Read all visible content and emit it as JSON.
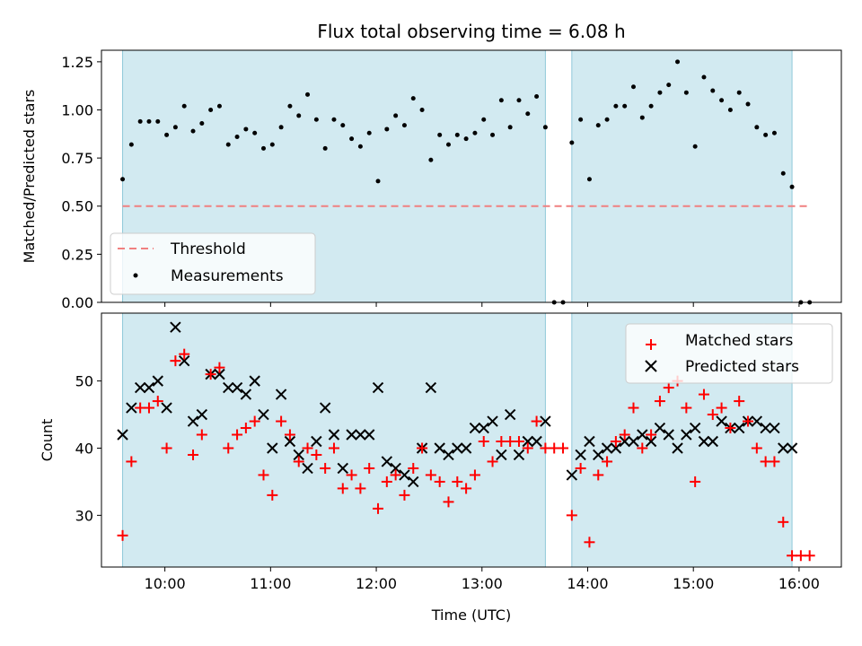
{
  "chart_data": [
    {
      "type": "scatter",
      "title": "Flux total observing time = 6.08 h",
      "ylabel": "Matched/Predicted stars",
      "xlabel": "",
      "ylim": [
        0,
        1.31
      ],
      "yticks": [
        0.0,
        0.25,
        0.5,
        0.75,
        1.0,
        1.25
      ],
      "ytick_labels": [
        "0.00",
        "0.25",
        "0.50",
        "0.75",
        "1.00",
        "1.25"
      ],
      "legend": {
        "placement": "lower-left",
        "entries": [
          "Threshold",
          "Measurements"
        ]
      },
      "threshold": {
        "name": "Threshold",
        "value": 0.5,
        "x_start": "09:36",
        "x_end": "16:06",
        "color": "#f08080"
      },
      "series": [
        {
          "name": "Measurements",
          "color": "#000000",
          "x": [
            "09:36",
            "09:41",
            "09:46",
            "09:51",
            "09:56",
            "10:01",
            "10:06",
            "10:11",
            "10:16",
            "10:21",
            "10:26",
            "10:31",
            "10:36",
            "10:41",
            "10:46",
            "10:51",
            "10:56",
            "11:01",
            "11:06",
            "11:11",
            "11:16",
            "11:21",
            "11:26",
            "11:31",
            "11:36",
            "11:41",
            "11:46",
            "11:51",
            "11:56",
            "12:01",
            "12:06",
            "12:11",
            "12:16",
            "12:21",
            "12:26",
            "12:31",
            "12:36",
            "12:41",
            "12:46",
            "12:51",
            "12:56",
            "13:01",
            "13:06",
            "13:11",
            "13:16",
            "13:21",
            "13:26",
            "13:31",
            "13:36",
            "13:41",
            "13:46",
            "13:51",
            "13:56",
            "14:01",
            "14:06",
            "14:11",
            "14:16",
            "14:21",
            "14:26",
            "14:31",
            "14:36",
            "14:41",
            "14:46",
            "14:51",
            "14:56",
            "15:01",
            "15:06",
            "15:11",
            "15:16",
            "15:21",
            "15:26",
            "15:31",
            "15:36",
            "15:41",
            "15:46",
            "15:51",
            "15:56",
            "16:01",
            "16:06"
          ],
          "y": [
            0.64,
            0.82,
            0.94,
            0.94,
            0.94,
            0.87,
            0.91,
            1.02,
            0.89,
            0.93,
            1.0,
            1.02,
            0.82,
            0.86,
            0.9,
            0.88,
            0.8,
            0.82,
            0.91,
            1.02,
            0.97,
            1.08,
            0.95,
            0.8,
            0.95,
            0.92,
            0.85,
            0.81,
            0.88,
            0.63,
            0.9,
            0.97,
            0.92,
            1.06,
            1.0,
            0.74,
            0.87,
            0.82,
            0.87,
            0.85,
            0.88,
            0.95,
            0.87,
            1.05,
            0.91,
            1.05,
            0.98,
            1.07,
            0.91,
            0.0,
            0.0,
            0.83,
            0.95,
            0.64,
            0.92,
            0.95,
            1.02,
            1.02,
            1.12,
            0.96,
            1.02,
            1.09,
            1.13,
            1.25,
            1.09,
            0.81,
            1.17,
            1.1,
            1.05,
            1.0,
            1.09,
            1.03,
            0.91,
            0.87,
            0.88,
            0.67,
            0.6,
            0.0,
            0.0
          ]
        }
      ],
      "shaded_intervals": [
        [
          "09:36",
          "13:36"
        ],
        [
          "13:51",
          "15:56"
        ]
      ],
      "shade_color": "#add8e6"
    },
    {
      "type": "scatter",
      "title": "",
      "ylabel": "Count",
      "xlabel": "Time (UTC)",
      "xlim": [
        "09:24",
        "16:24"
      ],
      "ylim": [
        22.3,
        60.1
      ],
      "yticks": [
        30,
        40,
        50
      ],
      "ytick_labels": [
        "30",
        "40",
        "50"
      ],
      "xticks": [
        "10:00",
        "11:00",
        "12:00",
        "13:00",
        "14:00",
        "15:00",
        "16:00"
      ],
      "xtick_labels": [
        "10:00",
        "11:00",
        "12:00",
        "13:00",
        "14:00",
        "15:00",
        "16:00"
      ],
      "legend": {
        "placement": "upper-right",
        "entries": [
          "Matched stars",
          "Predicted stars"
        ]
      },
      "series": [
        {
          "name": "Matched stars",
          "marker": "plus",
          "color": "#ff0000",
          "x": [
            "09:36",
            "09:41",
            "09:46",
            "09:51",
            "09:56",
            "10:01",
            "10:06",
            "10:11",
            "10:16",
            "10:21",
            "10:26",
            "10:31",
            "10:36",
            "10:41",
            "10:46",
            "10:51",
            "10:56",
            "11:01",
            "11:06",
            "11:11",
            "11:16",
            "11:21",
            "11:26",
            "11:31",
            "11:36",
            "11:41",
            "11:46",
            "11:51",
            "11:56",
            "12:01",
            "12:06",
            "12:11",
            "12:16",
            "12:21",
            "12:26",
            "12:31",
            "12:36",
            "12:41",
            "12:46",
            "12:51",
            "12:56",
            "13:01",
            "13:06",
            "13:11",
            "13:16",
            "13:21",
            "13:26",
            "13:31",
            "13:36",
            "13:41",
            "13:46",
            "13:51",
            "13:56",
            "14:01",
            "14:06",
            "14:11",
            "14:16",
            "14:21",
            "14:26",
            "14:31",
            "14:36",
            "14:41",
            "14:46",
            "14:51",
            "14:56",
            "15:01",
            "15:06",
            "15:11",
            "15:16",
            "15:21",
            "15:26",
            "15:31",
            "15:36",
            "15:41",
            "15:46",
            "15:51",
            "15:56",
            "16:01",
            "16:06"
          ],
          "y": [
            27,
            38,
            46,
            46,
            47,
            40,
            53,
            54,
            39,
            42,
            51,
            52,
            40,
            42,
            43,
            44,
            36,
            33,
            44,
            42,
            38,
            40,
            39,
            37,
            40,
            34,
            36,
            34,
            37,
            31,
            35,
            36,
            33,
            37,
            40,
            36,
            35,
            32,
            35,
            34,
            36,
            41,
            38,
            41,
            41,
            41,
            40,
            44,
            40,
            40,
            40,
            30,
            37,
            26,
            36,
            38,
            41,
            42,
            46,
            40,
            42,
            47,
            49,
            50,
            46,
            35,
            48,
            45,
            46,
            43,
            47,
            44,
            40,
            38,
            38,
            29,
            24,
            24,
            24
          ]
        },
        {
          "name": "Predicted stars",
          "marker": "x",
          "color": "#000000",
          "x": [
            "09:36",
            "09:41",
            "09:46",
            "09:51",
            "09:56",
            "10:01",
            "10:06",
            "10:11",
            "10:16",
            "10:21",
            "10:26",
            "10:31",
            "10:36",
            "10:41",
            "10:46",
            "10:51",
            "10:56",
            "11:01",
            "11:06",
            "11:11",
            "11:16",
            "11:21",
            "11:26",
            "11:31",
            "11:36",
            "11:41",
            "11:46",
            "11:51",
            "11:56",
            "12:01",
            "12:06",
            "12:11",
            "12:16",
            "12:21",
            "12:26",
            "12:31",
            "12:36",
            "12:41",
            "12:46",
            "12:51",
            "12:56",
            "13:01",
            "13:06",
            "13:11",
            "13:16",
            "13:21",
            "13:26",
            "13:31",
            "13:36",
            "13:51",
            "13:56",
            "14:01",
            "14:06",
            "14:11",
            "14:16",
            "14:21",
            "14:26",
            "14:31",
            "14:36",
            "14:41",
            "14:46",
            "14:51",
            "14:56",
            "15:01",
            "15:06",
            "15:11",
            "15:16",
            "15:21",
            "15:26",
            "15:31",
            "15:36",
            "15:41",
            "15:46",
            "15:51",
            "15:56"
          ],
          "y": [
            42,
            46,
            49,
            49,
            50,
            46,
            58,
            53,
            44,
            45,
            51,
            51,
            49,
            49,
            48,
            50,
            45,
            40,
            48,
            41,
            39,
            37,
            41,
            46,
            42,
            37,
            42,
            42,
            42,
            49,
            38,
            37,
            36,
            35,
            40,
            49,
            40,
            39,
            40,
            40,
            43,
            43,
            44,
            39,
            45,
            39,
            41,
            41,
            44,
            36,
            39,
            41,
            39,
            40,
            40,
            41,
            41,
            42,
            41,
            43,
            42,
            40,
            42,
            43,
            41,
            41,
            44,
            43,
            43,
            44,
            44,
            43,
            43,
            40,
            40
          ]
        }
      ],
      "shaded_intervals": [
        [
          "09:36",
          "13:36"
        ],
        [
          "13:51",
          "15:56"
        ]
      ],
      "shade_color": "#add8e6"
    }
  ]
}
